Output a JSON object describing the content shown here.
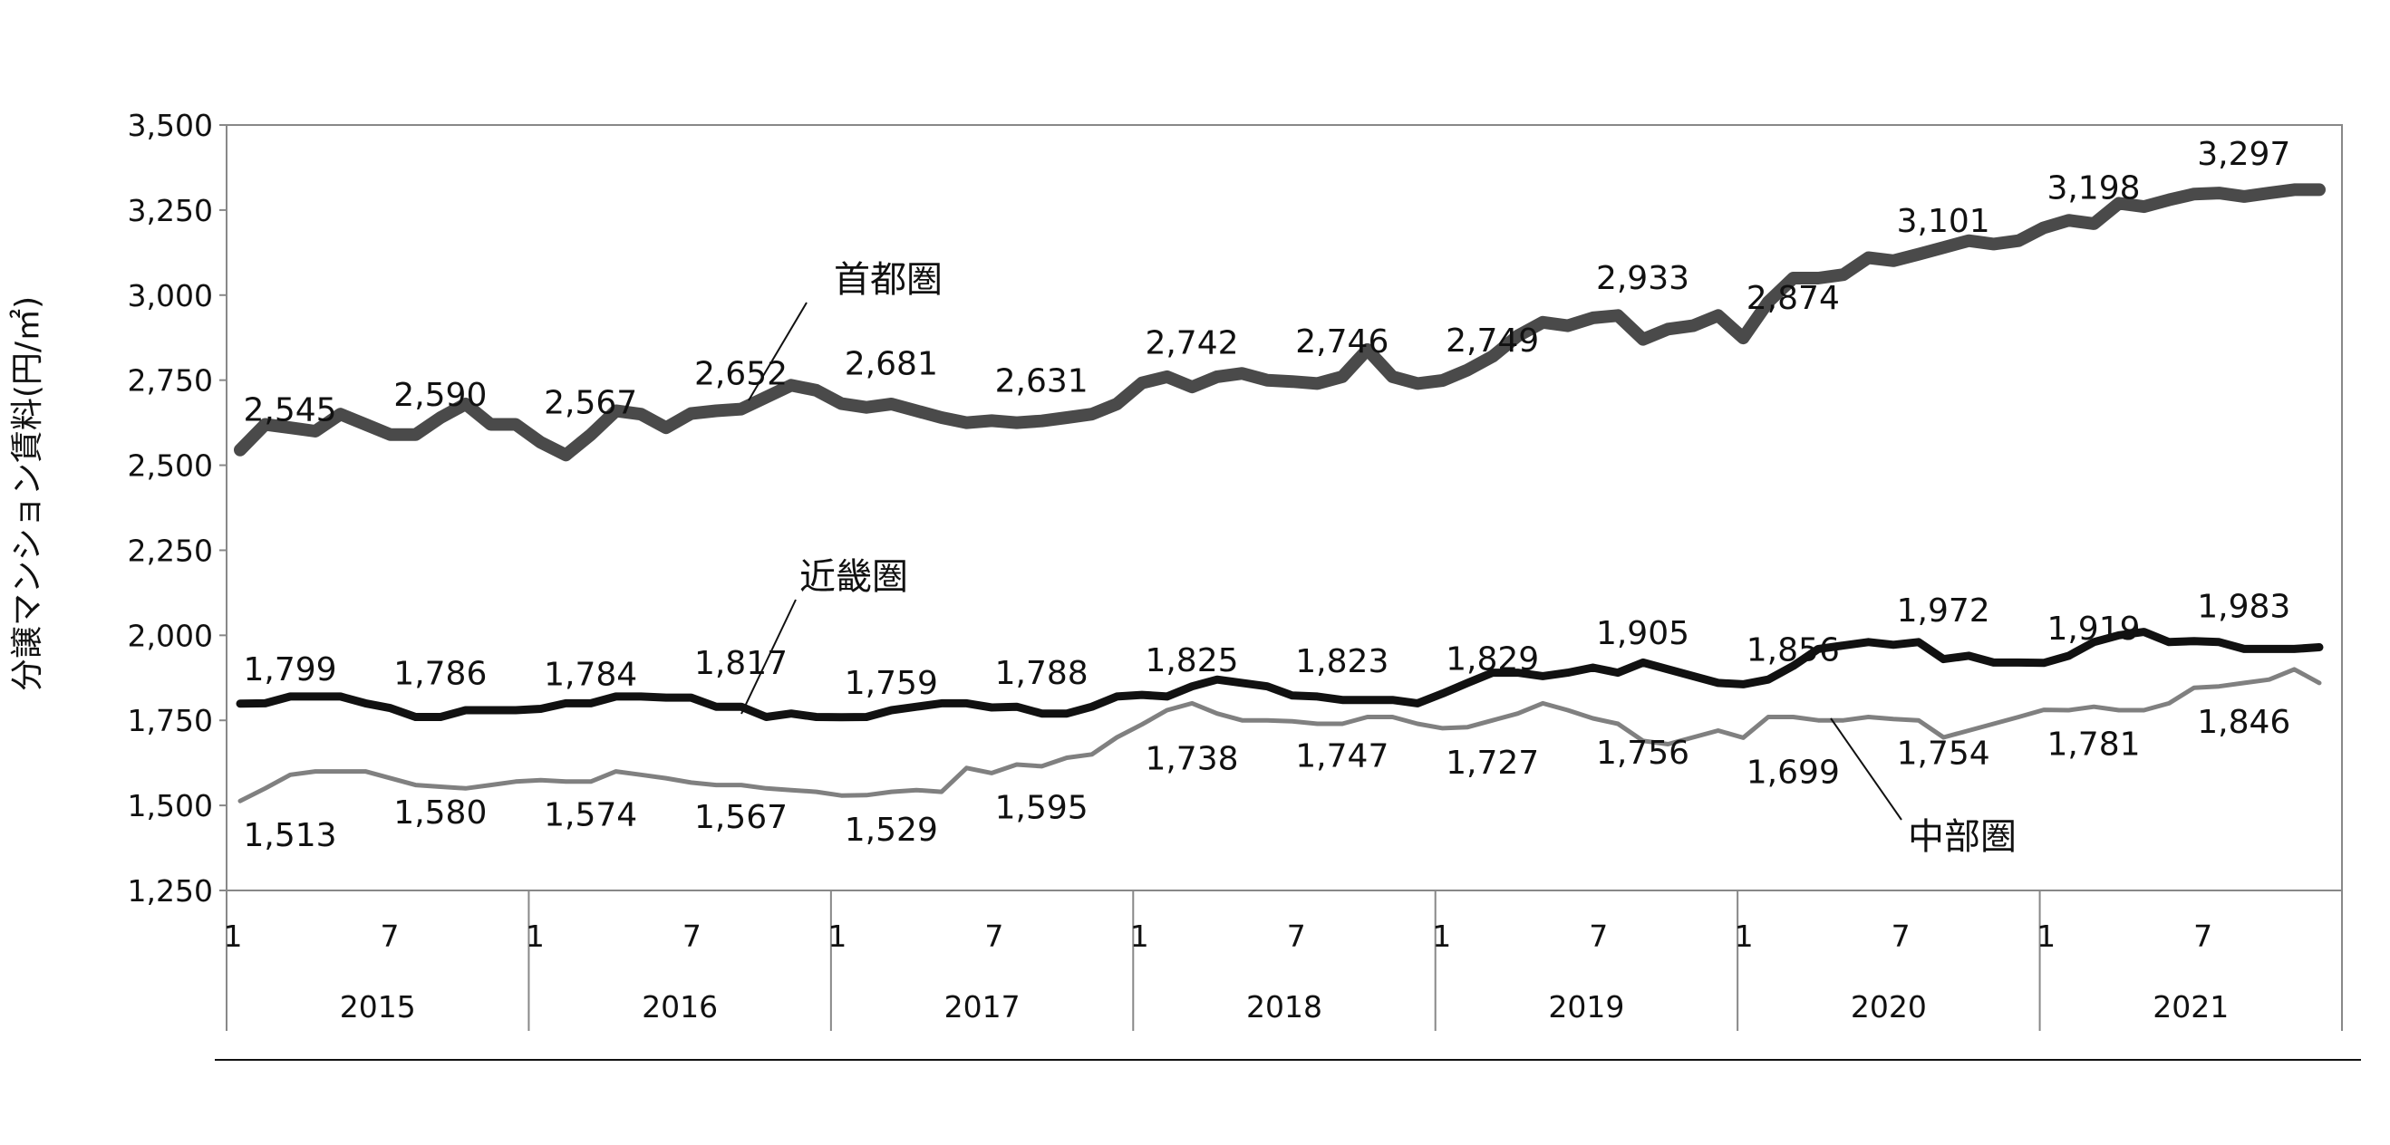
{
  "chart_data": {
    "type": "line",
    "ylabel": "分譲マンション賃料(円/㎡)",
    "ylim": [
      1250,
      3500
    ],
    "yticks": [
      "1,250",
      "1,500",
      "1,750",
      "2,000",
      "2,250",
      "2,500",
      "2,750",
      "3,000",
      "3,250",
      "3,500"
    ],
    "years": [
      "2015",
      "2016",
      "2017",
      "2018",
      "2019",
      "2020",
      "2021"
    ],
    "month_ticks": [
      "1",
      "7"
    ],
    "colors": {
      "首都圏": "#4a4a4a",
      "近畿圏": "#111111",
      "中部圏": "#808080"
    },
    "x_note": "monthly, Jan 2015 – Dec 2021",
    "series": [
      {
        "name": "首都圏",
        "values": [
          2545,
          2620,
          2610,
          2600,
          2650,
          2620,
          2590,
          2590,
          2640,
          2680,
          2620,
          2620,
          2567,
          2530,
          2590,
          2660,
          2650,
          2610,
          2652,
          2660,
          2665,
          2700,
          2735,
          2720,
          2681,
          2670,
          2680,
          2660,
          2640,
          2625,
          2631,
          2625,
          2630,
          2640,
          2650,
          2680,
          2742,
          2760,
          2730,
          2760,
          2770,
          2750,
          2746,
          2740,
          2760,
          2840,
          2760,
          2740,
          2749,
          2780,
          2820,
          2880,
          2920,
          2910,
          2933,
          2940,
          2870,
          2900,
          2910,
          2940,
          2874,
          2980,
          3050,
          3050,
          3060,
          3110,
          3101,
          3120,
          3140,
          3160,
          3150,
          3160,
          3198,
          3220,
          3210,
          3270,
          3260,
          3280,
          3297,
          3300,
          3290,
          3300,
          3310,
          3310
        ]
      },
      {
        "name": "近畿圏",
        "values": [
          1799,
          1800,
          1820,
          1820,
          1820,
          1800,
          1786,
          1760,
          1760,
          1780,
          1780,
          1780,
          1784,
          1800,
          1800,
          1820,
          1820,
          1817,
          1817,
          1790,
          1790,
          1760,
          1770,
          1760,
          1759,
          1760,
          1780,
          1790,
          1800,
          1800,
          1788,
          1790,
          1770,
          1770,
          1790,
          1820,
          1825,
          1820,
          1850,
          1870,
          1860,
          1850,
          1823,
          1820,
          1810,
          1810,
          1810,
          1800,
          1829,
          1860,
          1890,
          1890,
          1880,
          1890,
          1905,
          1890,
          1920,
          1900,
          1880,
          1860,
          1856,
          1870,
          1910,
          1960,
          1970,
          1980,
          1972,
          1980,
          1930,
          1940,
          1920,
          1920,
          1919,
          1940,
          1980,
          2000,
          2010,
          1980,
          1983,
          1980,
          1960,
          1960,
          1960,
          1965
        ]
      },
      {
        "name": "中部圏",
        "values": [
          1513,
          1550,
          1590,
          1600,
          1600,
          1600,
          1580,
          1560,
          1555,
          1550,
          1560,
          1570,
          1574,
          1570,
          1570,
          1600,
          1590,
          1580,
          1567,
          1560,
          1560,
          1550,
          1545,
          1540,
          1529,
          1530,
          1540,
          1545,
          1540,
          1610,
          1595,
          1620,
          1615,
          1640,
          1650,
          1700,
          1738,
          1780,
          1800,
          1770,
          1750,
          1750,
          1747,
          1740,
          1740,
          1760,
          1760,
          1740,
          1727,
          1730,
          1750,
          1770,
          1800,
          1780,
          1756,
          1740,
          1690,
          1680,
          1700,
          1720,
          1699,
          1760,
          1760,
          1750,
          1750,
          1760,
          1754,
          1750,
          1700,
          1720,
          1740,
          1760,
          1781,
          1780,
          1790,
          1780,
          1780,
          1800,
          1846,
          1850,
          1860,
          1870,
          1900,
          1860
        ]
      }
    ],
    "data_labels": {
      "首都圏": [
        "2,545",
        "2,590",
        "2,567",
        "2,652",
        "2,681",
        "2,631",
        "2,742",
        "2,746",
        "2,749",
        "2,933",
        "2,874",
        "3,101",
        "3,198",
        "3,297"
      ],
      "近畿圏": [
        "1,799",
        "1,786",
        "1,784",
        "1,817",
        "1,759",
        "1,788",
        "1,825",
        "1,823",
        "1,829",
        "1,905",
        "1,856",
        "1,972",
        "1,919",
        "1,983"
      ],
      "中部圏": [
        "1,513",
        "1,580",
        "1,574",
        "1,567",
        "1,529",
        "1,595",
        "1,738",
        "1,747",
        "1,727",
        "1,756",
        "1,699",
        "1,754",
        "1,781",
        "1,846"
      ]
    }
  }
}
